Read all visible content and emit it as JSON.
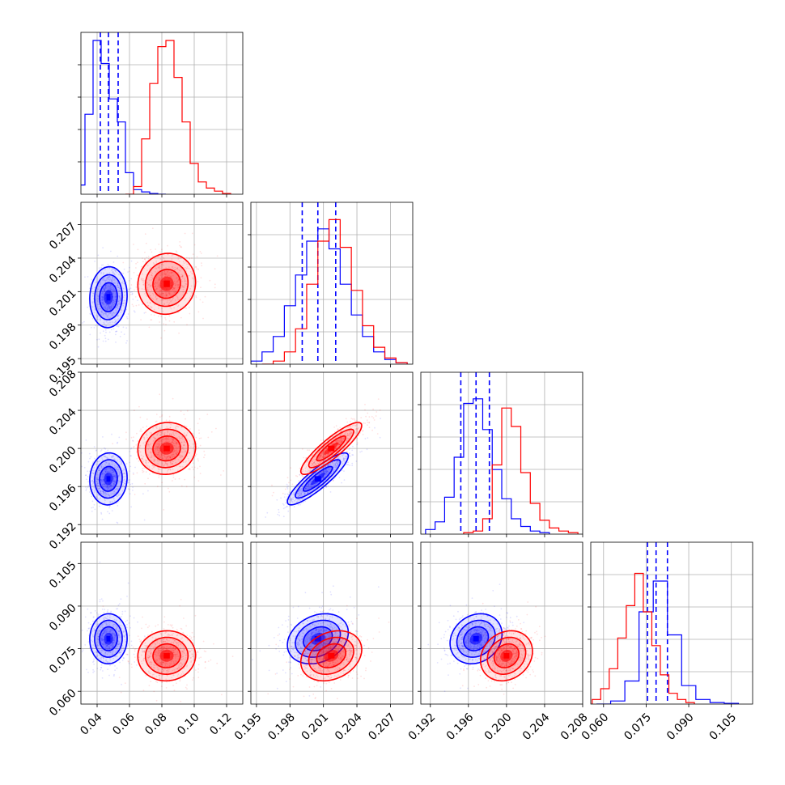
{
  "chart_data": {
    "type": "corner",
    "parameters": [
      {
        "range": [
          0.03,
          0.13
        ],
        "ticks": [
          0.04,
          0.06,
          0.08,
          0.1,
          0.12
        ],
        "tick_labels": [
          "0.04",
          "0.06",
          "0.08",
          "0.10",
          "0.12"
        ]
      },
      {
        "range": [
          0.1945,
          0.209
        ],
        "ticks": [
          0.195,
          0.198,
          0.201,
          0.204,
          0.207
        ],
        "tick_labels": [
          "0.195",
          "0.198",
          "0.201",
          "0.204",
          "0.207"
        ]
      },
      {
        "range": [
          0.191,
          0.208
        ],
        "ticks": [
          0.192,
          0.196,
          0.2,
          0.204,
          0.208
        ],
        "tick_labels": [
          "0.192",
          "0.196",
          "0.200",
          "0.204",
          "0.208"
        ]
      },
      {
        "range": [
          0.0555,
          0.1125
        ],
        "ticks": [
          0.06,
          0.075,
          0.09,
          0.105
        ],
        "tick_labels": [
          "0.060",
          "0.075",
          "0.090",
          "0.105"
        ]
      }
    ],
    "grid": true,
    "series": [
      {
        "color": "#0000ff",
        "means": [
          0.047,
          0.2005,
          0.1968,
          0.0785
        ],
        "sds": [
          0.0055,
          0.0013,
          0.0013,
          0.0042
        ],
        "quantiles": [
          [
            0.042,
            0.047,
            0.053
          ],
          [
            0.1991,
            0.2005,
            0.2021
          ],
          [
            0.1952,
            0.1968,
            0.1982
          ],
          [
            0.0755,
            0.0785,
            0.0825
          ]
        ],
        "correlations": [
          [
            0,
            1,
            0.05
          ],
          [
            0,
            2,
            0.05
          ],
          [
            0,
            3,
            0.02
          ],
          [
            1,
            2,
            0.88
          ],
          [
            1,
            3,
            0.25
          ],
          [
            2,
            3,
            0.18
          ]
        ],
        "hist_rel": [
          [
            [
              0.03,
              0.06
            ],
            [
              0.035,
              0.52
            ],
            [
              0.04,
              1.0
            ],
            [
              0.045,
              0.85
            ],
            [
              0.05,
              0.62
            ],
            [
              0.055,
              0.47
            ],
            [
              0.06,
              0.14
            ],
            [
              0.065,
              0.03
            ],
            [
              0.07,
              0.015
            ],
            [
              0.075,
              0.005
            ],
            [
              0.08,
              0.0
            ]
          ],
          [
            [
              0.195,
              0.02
            ],
            [
              0.196,
              0.08
            ],
            [
              0.197,
              0.18
            ],
            [
              0.198,
              0.38
            ],
            [
              0.199,
              0.58
            ],
            [
              0.2,
              0.8
            ],
            [
              0.201,
              0.88
            ],
            [
              0.202,
              0.75
            ],
            [
              0.203,
              0.52
            ],
            [
              0.204,
              0.32
            ],
            [
              0.205,
              0.18
            ],
            [
              0.206,
              0.08
            ],
            [
              0.207,
              0.03
            ],
            [
              0.208,
              0.01
            ]
          ],
          [
            [
              0.192,
              0.03
            ],
            [
              0.193,
              0.08
            ],
            [
              0.194,
              0.24
            ],
            [
              0.195,
              0.5
            ],
            [
              0.196,
              0.85
            ],
            [
              0.197,
              0.88
            ],
            [
              0.198,
              0.68
            ],
            [
              0.199,
              0.42
            ],
            [
              0.2,
              0.23
            ],
            [
              0.201,
              0.1
            ],
            [
              0.202,
              0.05
            ],
            [
              0.203,
              0.02
            ],
            [
              0.204,
              0.01
            ]
          ],
          [
            [
              0.06,
              0.0
            ],
            [
              0.065,
              0.02
            ],
            [
              0.07,
              0.15
            ],
            [
              0.075,
              0.6
            ],
            [
              0.08,
              0.8
            ],
            [
              0.085,
              0.45
            ],
            [
              0.09,
              0.12
            ],
            [
              0.095,
              0.03
            ],
            [
              0.1,
              0.01
            ],
            [
              0.105,
              0.005
            ]
          ]
        ]
      },
      {
        "color": "#ff0000",
        "means": [
          0.083,
          0.2017,
          0.2,
          0.0725
        ],
        "sds": [
          0.0085,
          0.0013,
          0.0013,
          0.0042
        ],
        "quantiles": null,
        "correlations": [
          [
            0,
            1,
            0.05
          ],
          [
            0,
            2,
            0.05
          ],
          [
            0,
            3,
            0.02
          ],
          [
            1,
            2,
            0.88
          ],
          [
            1,
            3,
            0.25
          ],
          [
            2,
            3,
            0.18
          ]
        ],
        "hist_rel": [
          [
            [
              0.06,
              0.0
            ],
            [
              0.065,
              0.05
            ],
            [
              0.07,
              0.36
            ],
            [
              0.075,
              0.72
            ],
            [
              0.08,
              0.96
            ],
            [
              0.085,
              1.0
            ],
            [
              0.09,
              0.76
            ],
            [
              0.095,
              0.47
            ],
            [
              0.1,
              0.2
            ],
            [
              0.105,
              0.08
            ],
            [
              0.11,
              0.04
            ],
            [
              0.115,
              0.02
            ],
            [
              0.12,
              0.005
            ]
          ],
          [
            [
              0.196,
              0.0
            ],
            [
              0.197,
              0.02
            ],
            [
              0.198,
              0.08
            ],
            [
              0.199,
              0.23
            ],
            [
              0.2,
              0.52
            ],
            [
              0.201,
              0.8
            ],
            [
              0.202,
              0.94
            ],
            [
              0.203,
              0.76
            ],
            [
              0.204,
              0.48
            ],
            [
              0.205,
              0.25
            ],
            [
              0.206,
              0.11
            ],
            [
              0.207,
              0.04
            ],
            [
              0.208,
              0.01
            ]
          ],
          [
            [
              0.196,
              0.01
            ],
            [
              0.197,
              0.02
            ],
            [
              0.198,
              0.1
            ],
            [
              0.199,
              0.45
            ],
            [
              0.2,
              0.82
            ],
            [
              0.201,
              0.7
            ],
            [
              0.202,
              0.4
            ],
            [
              0.203,
              0.2
            ],
            [
              0.204,
              0.09
            ],
            [
              0.205,
              0.04
            ],
            [
              0.206,
              0.02
            ],
            [
              0.207,
              0.01
            ]
          ],
          [
            [
              0.0575,
              0.03
            ],
            [
              0.0605,
              0.1
            ],
            [
              0.0635,
              0.23
            ],
            [
              0.0665,
              0.43
            ],
            [
              0.0695,
              0.64
            ],
            [
              0.0725,
              0.85
            ],
            [
              0.0755,
              0.6
            ],
            [
              0.0785,
              0.38
            ],
            [
              0.0815,
              0.19
            ],
            [
              0.0845,
              0.07
            ],
            [
              0.0875,
              0.03
            ],
            [
              0.0905,
              0.01
            ]
          ]
        ]
      }
    ]
  }
}
